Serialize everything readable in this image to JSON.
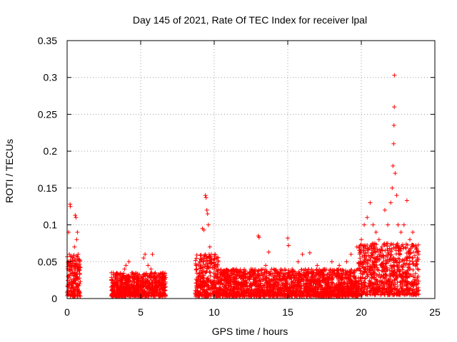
{
  "chart_data": {
    "type": "scatter",
    "title": "Day 145 of 2021, Rate Of TEC Index for receiver lpal",
    "xlabel": "GPS time / hours",
    "ylabel": "ROTI / TECUs",
    "xlim": [
      0,
      25
    ],
    "ylim": [
      0,
      0.35
    ],
    "xticks": [
      0,
      5,
      10,
      15,
      20,
      25
    ],
    "yticks": [
      0,
      0.05,
      0.1,
      0.15,
      0.2,
      0.25,
      0.3,
      0.35
    ],
    "xtick_labels": [
      "0",
      "5",
      "10",
      "15",
      "20",
      "25"
    ],
    "ytick_labels": [
      "0",
      "0.05",
      "0.1",
      "0.15",
      "0.2",
      "0.25",
      "0.3",
      "0.35"
    ],
    "grid": true,
    "marker": "+",
    "color": "#ff0000",
    "series": [
      {
        "name": "ROTI",
        "points": [
          [
            0.05,
            0.03
          ],
          [
            0.1,
            0.09
          ],
          [
            0.15,
            0.06
          ],
          [
            0.2,
            0.128
          ],
          [
            0.22,
            0.125
          ],
          [
            0.25,
            0.05
          ],
          [
            0.3,
            0.04
          ],
          [
            0.35,
            0.02
          ],
          [
            0.4,
            0.055
          ],
          [
            0.45,
            0.03
          ],
          [
            0.5,
            0.07
          ],
          [
            0.55,
            0.113
          ],
          [
            0.6,
            0.11
          ],
          [
            0.65,
            0.08
          ],
          [
            0.7,
            0.09
          ],
          [
            0.75,
            0.06
          ],
          [
            0.8,
            0.04
          ],
          [
            0.85,
            0.02
          ],
          [
            3.1,
            0.02
          ],
          [
            3.3,
            0.03
          ],
          [
            3.5,
            0.015
          ],
          [
            3.7,
            0.025
          ],
          [
            3.9,
            0.04
          ],
          [
            4.0,
            0.045
          ],
          [
            4.2,
            0.05
          ],
          [
            4.4,
            0.035
          ],
          [
            4.6,
            0.03
          ],
          [
            4.8,
            0.025
          ],
          [
            5.0,
            0.03
          ],
          [
            5.2,
            0.055
          ],
          [
            5.3,
            0.06
          ],
          [
            5.5,
            0.045
          ],
          [
            5.7,
            0.04
          ],
          [
            5.8,
            0.06
          ],
          [
            6.0,
            0.035
          ],
          [
            6.3,
            0.025
          ],
          [
            6.6,
            0.02
          ],
          [
            8.8,
            0.04
          ],
          [
            9.0,
            0.05
          ],
          [
            9.2,
            0.095
          ],
          [
            9.3,
            0.093
          ],
          [
            9.4,
            0.14
          ],
          [
            9.45,
            0.137
          ],
          [
            9.5,
            0.12
          ],
          [
            9.55,
            0.115
          ],
          [
            9.6,
            0.1
          ],
          [
            9.7,
            0.07
          ],
          [
            9.8,
            0.06
          ],
          [
            10.0,
            0.04
          ],
          [
            10.2,
            0.03
          ],
          [
            10.5,
            0.035
          ],
          [
            11.0,
            0.03
          ],
          [
            11.5,
            0.04
          ],
          [
            12.0,
            0.035
          ],
          [
            12.5,
            0.04
          ],
          [
            13.0,
            0.085
          ],
          [
            13.05,
            0.083
          ],
          [
            13.5,
            0.045
          ],
          [
            13.7,
            0.063
          ],
          [
            14.0,
            0.03
          ],
          [
            14.5,
            0.025
          ],
          [
            15.0,
            0.082
          ],
          [
            15.05,
            0.072
          ],
          [
            15.3,
            0.04
          ],
          [
            15.7,
            0.05
          ],
          [
            16.0,
            0.06
          ],
          [
            16.5,
            0.062
          ],
          [
            17.0,
            0.045
          ],
          [
            17.5,
            0.04
          ],
          [
            18.0,
            0.05
          ],
          [
            18.5,
            0.045
          ],
          [
            19.0,
            0.05
          ],
          [
            19.3,
            0.06
          ],
          [
            19.7,
            0.07
          ],
          [
            20.0,
            0.08
          ],
          [
            20.2,
            0.1
          ],
          [
            20.4,
            0.11
          ],
          [
            20.6,
            0.13
          ],
          [
            20.8,
            0.1
          ],
          [
            21.0,
            0.09
          ],
          [
            21.2,
            0.08
          ],
          [
            21.4,
            0.07
          ],
          [
            21.6,
            0.12
          ],
          [
            21.8,
            0.1
          ],
          [
            22.0,
            0.13
          ],
          [
            22.1,
            0.15
          ],
          [
            22.15,
            0.18
          ],
          [
            22.2,
            0.21
          ],
          [
            22.22,
            0.235
          ],
          [
            22.24,
            0.26
          ],
          [
            22.25,
            0.303
          ],
          [
            22.3,
            0.17
          ],
          [
            22.4,
            0.14
          ],
          [
            22.5,
            0.1
          ],
          [
            22.7,
            0.09
          ],
          [
            22.9,
            0.1
          ],
          [
            23.1,
            0.133
          ],
          [
            23.3,
            0.08
          ],
          [
            23.5,
            0.09
          ],
          [
            23.7,
            0.07
          ],
          [
            23.9,
            0.06
          ]
        ]
      }
    ],
    "dense_clusters": [
      {
        "x_start": 0.0,
        "x_end": 0.9,
        "y_low": 0.003,
        "y_high": 0.06
      },
      {
        "x_start": 3.0,
        "x_end": 6.7,
        "y_low": 0.003,
        "y_high": 0.035
      },
      {
        "x_start": 8.7,
        "x_end": 10.3,
        "y_low": 0.003,
        "y_high": 0.06
      },
      {
        "x_start": 10.3,
        "x_end": 19.8,
        "y_low": 0.003,
        "y_high": 0.04
      },
      {
        "x_start": 19.8,
        "x_end": 23.9,
        "y_low": 0.005,
        "y_high": 0.075
      }
    ]
  }
}
